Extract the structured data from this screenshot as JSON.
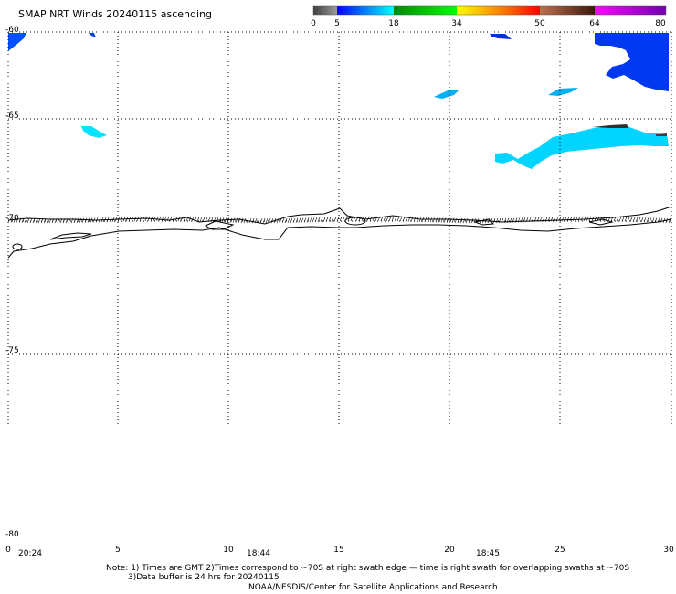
{
  "title": "SMAP NRT Winds 20240115 ascending",
  "colorbar": {
    "labels": [
      "0",
      "5",
      "18",
      "34",
      "50",
      "64",
      "80"
    ],
    "segments": [
      {
        "from": 0,
        "to": 5,
        "colors": [
          "#404040",
          "#9a9a9a"
        ]
      },
      {
        "from": 5,
        "to": 18,
        "colors": [
          "#0000ff",
          "#00ffff"
        ]
      },
      {
        "from": 18,
        "to": 34,
        "colors": [
          "#008800",
          "#00ff00"
        ]
      },
      {
        "from": 34,
        "to": 50,
        "colors": [
          "#ffff00",
          "#ff8800",
          "#ff0000"
        ]
      },
      {
        "from": 50,
        "to": 64,
        "colors": [
          "#c07050",
          "#3a1a0a"
        ]
      },
      {
        "from": 64,
        "to": 80,
        "colors": [
          "#ff00ff",
          "#7000b0"
        ]
      }
    ]
  },
  "map": {
    "lon_range": [
      0,
      30
    ],
    "lat_range": [
      -60,
      -80
    ],
    "lat_labels": [
      "-60",
      "-65",
      "-70",
      "-75",
      "-80"
    ],
    "lon_labels": [
      "0",
      "5",
      "10",
      "15",
      "20",
      "25",
      "30"
    ],
    "grid": true
  },
  "time_labels": [
    "20:24",
    "18:44",
    "18:45"
  ],
  "notes": [
    "Note: 1) Times are GMT 2)Times correspond to ~70S at right swath edge — time is right swath for overlapping swaths at ~70S",
    "3)Data buffer is 24 hrs for 20240115",
    "NOAA/NESDIS/Center for Satellite Applications and Research"
  ],
  "colors": {
    "wind_blue": "#0040ff",
    "wind_light_blue": "#00b8f8",
    "wind_cyan": "#00e8ff",
    "coast": "#000000"
  }
}
